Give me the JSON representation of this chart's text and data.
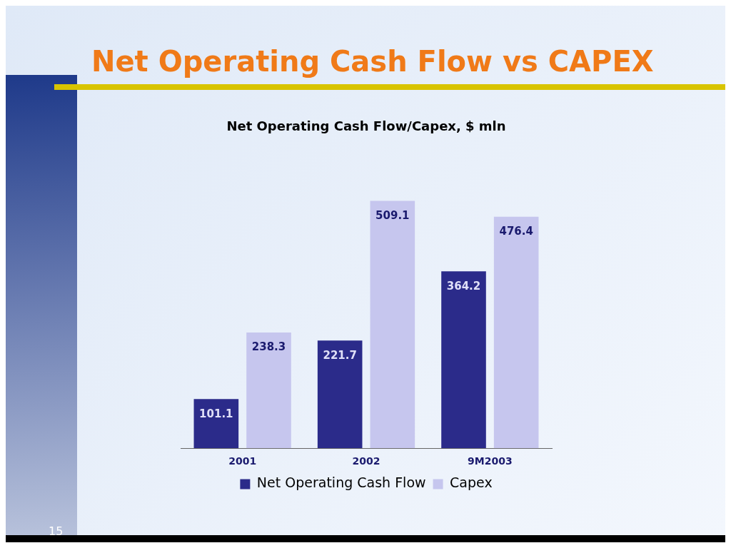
{
  "chart_data": {
    "type": "bar",
    "title": "Net Operating Cash Flow vs CAPEX",
    "subtitle": "Net Operating Cash Flow/Capex, $ mln",
    "categories": [
      "2001",
      "2002",
      "9M2003"
    ],
    "series": [
      {
        "name": "Net Operating Cash Flow",
        "color": "#2b2b8a",
        "values": [
          101.1,
          221.7,
          364.2
        ]
      },
      {
        "name": "Capex",
        "color": "#c6c6ee",
        "values": [
          238.3,
          509.1,
          476.4
        ]
      }
    ],
    "data_labels": true,
    "legend": "bottom",
    "grid": false,
    "annotations": [
      "15"
    ]
  }
}
